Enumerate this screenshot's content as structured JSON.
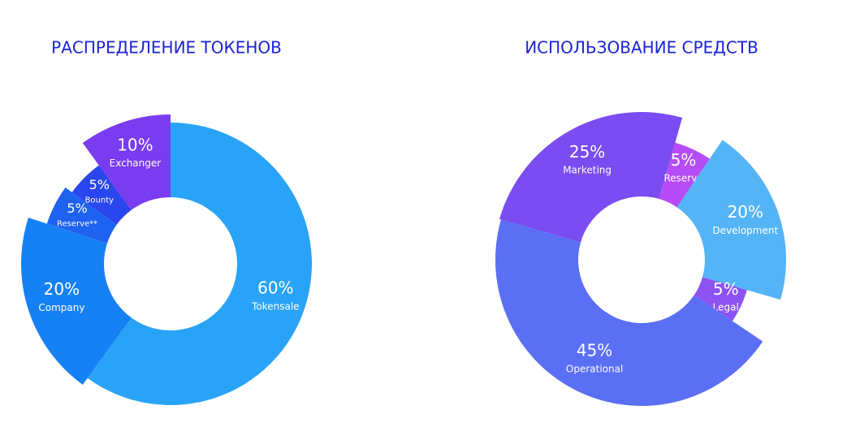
{
  "chart_data": [
    {
      "type": "pie",
      "title": "РАСПРЕДЕЛЕНИЕ ТОКЕНОВ",
      "categories": [
        "Tokensale",
        "Company",
        "Reserve**",
        "Bounty",
        "Exchanger"
      ],
      "values": [
        60,
        20,
        5,
        5,
        10
      ],
      "value_labels": [
        "60%",
        "20%",
        "5%",
        "5%",
        "10%"
      ],
      "colors": [
        "#29a3f8",
        "#1680f5",
        "#1e62f2",
        "#2a46ee",
        "#7a3cf0"
      ]
    },
    {
      "type": "pie",
      "title": "ИСПОЛЬЗОВАНИЕ СРЕДСТВ",
      "categories": [
        "Marketing",
        "Reserve",
        "Development",
        "Legal",
        "Operational"
      ],
      "values": [
        25,
        5,
        20,
        5,
        45
      ],
      "value_labels": [
        "25%",
        "5%",
        "20%",
        "5%",
        "45%"
      ],
      "colors": [
        "#7a4cf2",
        "#b54cf5",
        "#54b4f6",
        "#8c52f3",
        "#5a6ff3"
      ]
    }
  ]
}
